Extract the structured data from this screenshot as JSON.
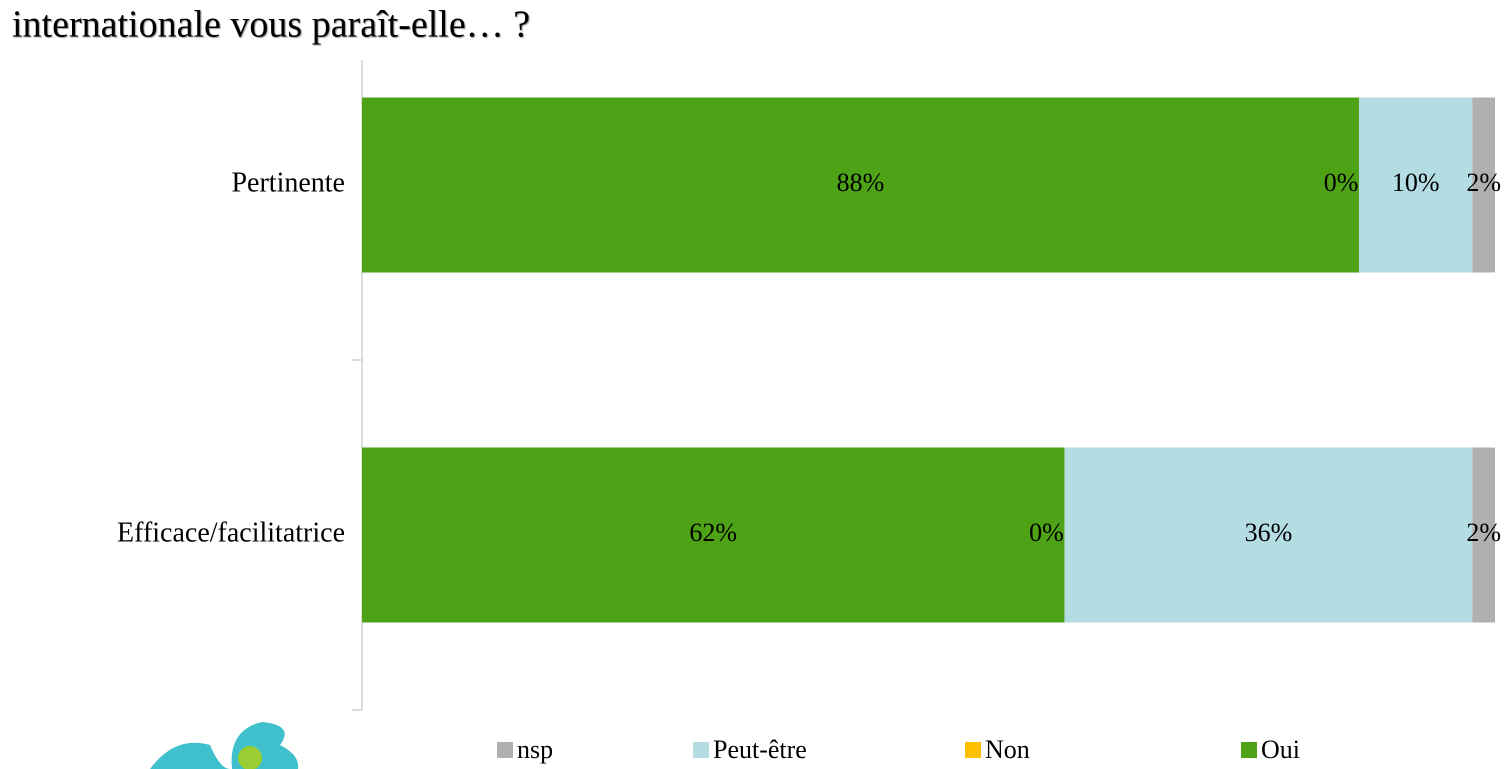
{
  "chart_data": {
    "type": "stacked-bar-horizontal",
    "title": "internationale vous paraît-elle… ?",
    "categories": [
      "Pertinente",
      "Efficace/facilitatrice"
    ],
    "series": [
      {
        "name": "Oui",
        "color": "#4ea216",
        "values": [
          88,
          62
        ],
        "value_labels": [
          "88%",
          "62%"
        ]
      },
      {
        "name": "Non",
        "color": "#ffc000",
        "values": [
          0,
          0
        ],
        "value_labels": [
          "0%",
          "0%"
        ]
      },
      {
        "name": "Peut-être",
        "color": "#b4dce3",
        "values": [
          10,
          36
        ],
        "value_labels": [
          "10%",
          "36%"
        ]
      },
      {
        "name": "nsp",
        "color": "#b0b0b0",
        "values": [
          2,
          2
        ],
        "value_labels": [
          "2%",
          "2%"
        ]
      }
    ],
    "xlim": [
      0,
      100
    ],
    "legend": "bottom"
  }
}
